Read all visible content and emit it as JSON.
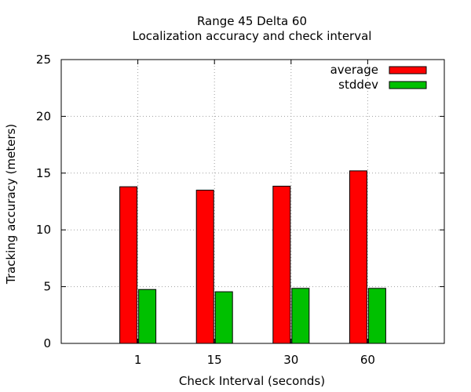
{
  "chart_data": {
    "type": "bar",
    "title": "Range 45 Delta 60",
    "subtitle": "Localization accuracy and check interval",
    "xlabel": "Check Interval (seconds)",
    "ylabel": "Tracking accuracy (meters)",
    "categories": [
      "1",
      "15",
      "30",
      "60"
    ],
    "ylim": [
      0,
      25
    ],
    "yticks": [
      0,
      5,
      10,
      15,
      20,
      25
    ],
    "grid": true,
    "legend_position": "top-right",
    "series": [
      {
        "name": "average",
        "color": "#ff0000",
        "values": [
          13.8,
          13.5,
          13.85,
          15.2
        ]
      },
      {
        "name": "stddev",
        "color": "#00c000",
        "values": [
          4.75,
          4.55,
          4.85,
          4.85
        ]
      }
    ]
  }
}
